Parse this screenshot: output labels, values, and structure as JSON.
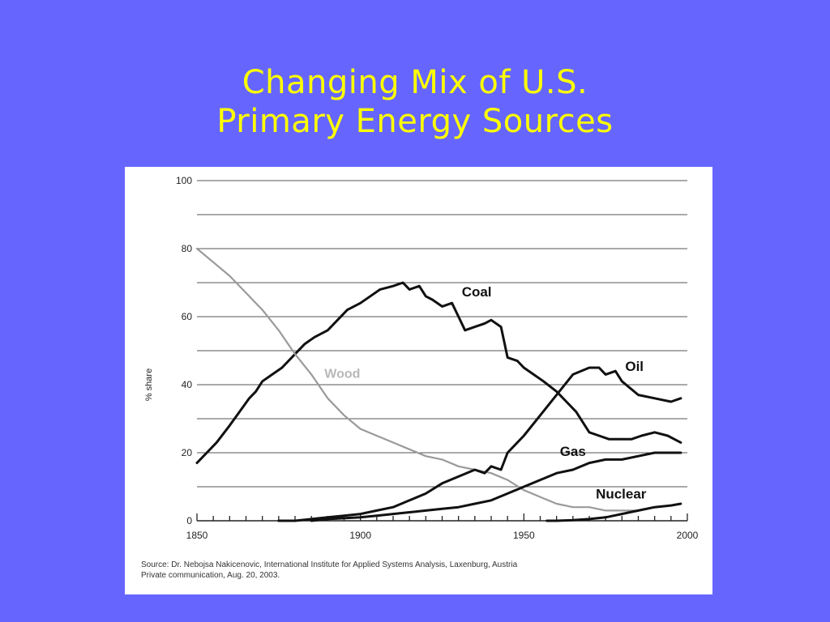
{
  "slide": {
    "title_line1": "Changing Mix of U.S.",
    "title_line2": "Primary Energy Sources"
  },
  "colors": {
    "background": "#6666ff",
    "title": "#ffff00",
    "line": "#111111",
    "wood_line": "#9a9a9a"
  },
  "source": {
    "line1": "Source: Dr. Nebojsa Nakicenovic, International Institute for Applied Systems Analysis, Laxenburg, Austria",
    "line2": "Private communication, Aug. 20, 2003."
  },
  "chart_data": {
    "type": "line",
    "title": "",
    "xlabel": "",
    "ylabel": "% share",
    "xlim": [
      1850,
      2000
    ],
    "ylim": [
      0,
      100
    ],
    "x_ticks": [
      1850,
      1900,
      1950,
      2000
    ],
    "y_ticks": [
      0,
      20,
      40,
      60,
      80,
      100
    ],
    "grid": true,
    "series": [
      {
        "name": "Coal",
        "color": "#111111",
        "x": [
          1850,
          1853,
          1856,
          1860,
          1863,
          1866,
          1868,
          1870,
          1873,
          1876,
          1880,
          1883,
          1886,
          1890,
          1893,
          1896,
          1900,
          1903,
          1906,
          1910,
          1913,
          1915,
          1918,
          1920,
          1922,
          1925,
          1928,
          1930,
          1932,
          1935,
          1938,
          1940,
          1943,
          1945,
          1948,
          1950,
          1953,
          1956,
          1960,
          1963,
          1966,
          1970,
          1973,
          1976,
          1980,
          1983,
          1986,
          1990,
          1994,
          1998
        ],
        "y": [
          17,
          20,
          23,
          28,
          32,
          36,
          38,
          41,
          43,
          45,
          49,
          52,
          54,
          56,
          59,
          62,
          64,
          66,
          68,
          69,
          70,
          68,
          69,
          66,
          65,
          63,
          64,
          60,
          56,
          57,
          58,
          59,
          57,
          48,
          47,
          45,
          43,
          41,
          38,
          35,
          32,
          26,
          25,
          24,
          24,
          24,
          25,
          26,
          25,
          23
        ]
      },
      {
        "name": "Wood",
        "color": "#9a9a9a",
        "x": [
          1850,
          1855,
          1860,
          1865,
          1870,
          1875,
          1880,
          1885,
          1890,
          1895,
          1900,
          1905,
          1910,
          1915,
          1920,
          1925,
          1930,
          1935,
          1940,
          1945,
          1950,
          1955,
          1960,
          1965,
          1970,
          1975,
          1980,
          1985
        ],
        "y": [
          80,
          76,
          72,
          67,
          62,
          56,
          49,
          43,
          36,
          31,
          27,
          25,
          23,
          21,
          19,
          18,
          16,
          15,
          14,
          12,
          9,
          7,
          5,
          4,
          4,
          3,
          3,
          3
        ]
      },
      {
        "name": "Oil",
        "color": "#111111",
        "x": [
          1875,
          1880,
          1885,
          1890,
          1895,
          1900,
          1905,
          1910,
          1915,
          1920,
          1925,
          1930,
          1935,
          1938,
          1940,
          1943,
          1945,
          1950,
          1955,
          1960,
          1965,
          1970,
          1973,
          1975,
          1978,
          1980,
          1985,
          1990,
          1995,
          1998
        ],
        "y": [
          0,
          0,
          0.5,
          1,
          1.5,
          2,
          3,
          4,
          6,
          8,
          11,
          13,
          15,
          14,
          16,
          15,
          20,
          25,
          31,
          37,
          43,
          45,
          45,
          43,
          44,
          41,
          37,
          36,
          35,
          36
        ]
      },
      {
        "name": "Gas",
        "color": "#111111",
        "x": [
          1885,
          1890,
          1900,
          1905,
          1910,
          1915,
          1920,
          1925,
          1930,
          1935,
          1940,
          1945,
          1950,
          1955,
          1960,
          1965,
          1970,
          1975,
          1980,
          1985,
          1990,
          1995,
          1998
        ],
        "y": [
          0,
          0.5,
          1,
          1.5,
          2,
          2.5,
          3,
          3.5,
          4,
          5,
          6,
          8,
          10,
          12,
          14,
          15,
          17,
          18,
          18,
          19,
          20,
          20,
          20
        ]
      },
      {
        "name": "Nuclear",
        "color": "#111111",
        "x": [
          1957,
          1960,
          1965,
          1970,
          1975,
          1980,
          1985,
          1990,
          1995,
          1998
        ],
        "y": [
          0,
          0,
          0.2,
          0.5,
          1,
          2,
          3,
          4,
          4.5,
          5
        ]
      }
    ]
  }
}
